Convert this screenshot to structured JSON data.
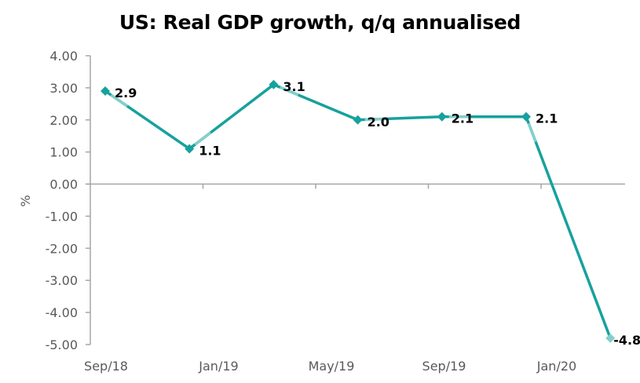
{
  "chart_data": {
    "type": "line",
    "title": "US: Real GDP growth, q/q annualised",
    "xlabel": "",
    "ylabel": "%",
    "ylim": [
      -5,
      4
    ],
    "yticks": [
      4,
      3,
      2,
      1,
      0,
      -1,
      -2,
      -3,
      -4,
      -5
    ],
    "ytick_labels": [
      "4.00",
      "3.00",
      "2.00",
      "1.00",
      "0.00",
      "-1.00",
      "-2.00",
      "-3.00",
      "-4.00",
      "-5.00"
    ],
    "xtick_labels": [
      "Sep/18",
      "Jan/19",
      "May/19",
      "Sep/19",
      "Jan/20"
    ],
    "x": [
      "Sep/18",
      "Dec/18",
      "Mar/19",
      "Jun/19",
      "Sep/19",
      "Dec/19",
      "Mar/20"
    ],
    "series": [
      {
        "name": "Real GDP growth, q/q annualised",
        "values": [
          2.9,
          1.1,
          3.1,
          2.0,
          2.1,
          2.1,
          -4.8
        ],
        "labels": [
          "2.9",
          "1.1",
          "3.1",
          "2.0",
          "2.1",
          "2.1",
          "-4.8"
        ],
        "color": "#17A19E",
        "highlight_color": "#82CFCB"
      }
    ],
    "grid": false,
    "legend": "none"
  }
}
